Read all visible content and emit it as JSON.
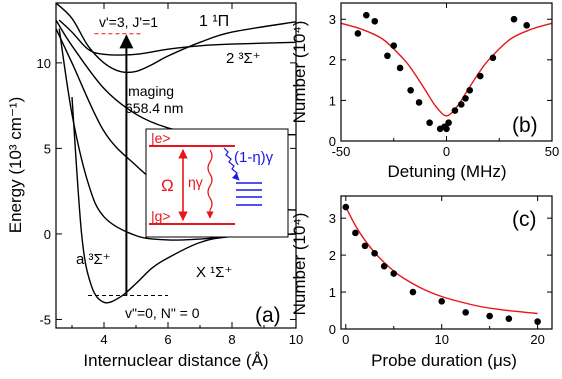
{
  "figure": {
    "panel_a": {
      "xlabel": "Internuclear distance (Å)",
      "ylabel": "Energy (10³ cm⁻¹)",
      "panel_label": "(a)",
      "xticks": [
        "4",
        "6",
        "8",
        "10"
      ],
      "yticks": [
        "-5",
        "0",
        "5",
        "10"
      ],
      "curve_labels": {
        "pi": "1 ¹Π",
        "sigma2": "2 ³Σ⁺",
        "a_state": "a ³Σ⁺",
        "x_state": "X ¹Σ⁺"
      },
      "annotations": {
        "upper_level": "v'=3, J'=1",
        "imaging": "imaging",
        "wavelength": "658.4 nm",
        "lower_level": "v\"=0, N\" = 0"
      },
      "inset": {
        "excited": "|e>",
        "ground": "|g>",
        "rabi": "Ω",
        "decay_to_g": "ηγ",
        "decay_other": "(1-η)γ"
      }
    },
    "panel_b": {
      "xlabel": "Detuning (MHz)",
      "ylabel": "Number (10⁴)",
      "panel_label": "(b)",
      "xticks": [
        "-50",
        "0",
        "50"
      ],
      "yticks": [
        "0",
        "1",
        "2",
        "3"
      ]
    },
    "panel_c": {
      "xlabel": "Probe duration (μs)",
      "ylabel": "Number (10⁴)",
      "panel_label": "(c)",
      "xticks": [
        "0",
        "10",
        "20"
      ],
      "yticks": [
        "0",
        "1",
        "2",
        "3"
      ]
    }
  },
  "colors": {
    "fit": "#e8141b",
    "inset_levels": "#e8141b",
    "decay_other": "#1a1ae6",
    "points": "#000000",
    "curves": "#000000"
  },
  "chart_data": [
    {
      "type": "line",
      "panel": "a",
      "xlabel": "Internuclear distance (Å)",
      "ylabel": "Energy (10³ cm⁻¹)",
      "xlim": [
        2.5,
        10
      ],
      "ylim": [
        -5.5,
        13.5
      ],
      "series": [
        {
          "name": "X ¹Σ⁺",
          "x": [
            3.0,
            3.3,
            3.6,
            4.0,
            4.5,
            5.0,
            5.5,
            6.0,
            7.0,
            8.0,
            10.0
          ],
          "y": [
            8.0,
            0.0,
            -3.0,
            -4.0,
            -3.7,
            -2.9,
            -2.0,
            -1.4,
            -0.5,
            -0.15,
            0.0
          ]
        },
        {
          "name": "a ³Σ⁺",
          "x": [
            2.6,
            3.0,
            3.5,
            4.0,
            5.0,
            6.0,
            7.0,
            8.0,
            10.0
          ],
          "y": [
            12.0,
            7.0,
            3.0,
            1.0,
            -0.1,
            -0.35,
            -0.3,
            -0.15,
            0.0
          ]
        },
        {
          "name": "2 ³Σ⁺",
          "x": [
            2.6,
            3.0,
            3.5,
            4.0,
            5.0,
            6.0,
            7.0,
            8.0,
            10.0
          ],
          "y": [
            12.5,
            11.8,
            10.8,
            10.5,
            10.5,
            10.8,
            11.0,
            11.1,
            11.2
          ]
        },
        {
          "name": "1 ¹Π",
          "x": [
            2.5,
            3.0,
            3.5,
            4.0,
            4.5,
            5.0,
            5.5,
            6.0,
            7.0,
            8.0,
            10.0
          ],
          "y": [
            13.5,
            12.6,
            11.0,
            10.0,
            9.5,
            9.5,
            9.9,
            10.4,
            11.2,
            11.8,
            12.4
          ]
        },
        {
          "name": "",
          "x": [
            2.5,
            3.0,
            4.0,
            5.0,
            6.0,
            7.0,
            8.0,
            10.0
          ],
          "y": [
            12.5,
            11.0,
            8.5,
            7.0,
            6.2,
            5.9,
            5.8,
            5.8
          ]
        },
        {
          "name": "",
          "x": [
            2.5,
            3.0,
            4.0,
            5.0,
            6.0,
            7.0,
            8.0,
            10.0
          ],
          "y": [
            12.0,
            10.0,
            6.0,
            4.0,
            2.5,
            1.8,
            1.5,
            1.4
          ]
        }
      ],
      "levels": [
        {
          "name": "v'=3, J'=1",
          "y": 11.7,
          "x": [
            3.7,
            5.2
          ]
        },
        {
          "name": "v\"=0, N\" = 0",
          "y": -3.6,
          "x": [
            3.5,
            6.0
          ]
        }
      ],
      "transition": {
        "label": "imaging 658.4 nm",
        "x": 4.7,
        "y_from": -3.6,
        "y_to": 11.7
      }
    },
    {
      "type": "scatter",
      "panel": "b",
      "xlabel": "Detuning (MHz)",
      "ylabel": "Number (10⁴)",
      "xlim": [
        -50,
        50
      ],
      "ylim": [
        0,
        3.4
      ],
      "series": [
        {
          "x": [
            -42,
            -38,
            -34,
            -28,
            -25,
            -22,
            -17,
            -13,
            -8,
            -3,
            -1,
            0,
            1,
            4,
            7,
            9,
            11,
            16,
            22,
            32,
            38
          ],
          "y": [
            2.65,
            3.1,
            2.95,
            2.1,
            2.35,
            1.8,
            1.25,
            0.95,
            0.45,
            0.3,
            0.35,
            0.3,
            0.45,
            0.75,
            0.9,
            1.05,
            1.25,
            1.6,
            2.05,
            3.0,
            2.85
          ]
        }
      ],
      "fit": {
        "x": [
          -50,
          -40,
          -30,
          -20,
          -15,
          -10,
          -5,
          0,
          5,
          10,
          15,
          20,
          30,
          40,
          50
        ],
        "y": [
          2.9,
          2.75,
          2.5,
          2.0,
          1.65,
          1.25,
          0.85,
          0.62,
          0.85,
          1.25,
          1.65,
          2.0,
          2.5,
          2.75,
          2.9
        ]
      }
    },
    {
      "type": "scatter",
      "panel": "c",
      "xlabel": "Probe duration (μs)",
      "ylabel": "Number (10⁴)",
      "xlim": [
        -0.5,
        21.5
      ],
      "ylim": [
        0,
        3.6
      ],
      "series": [
        {
          "x": [
            0,
            1,
            2,
            3,
            4,
            5,
            7,
            10,
            12.5,
            15,
            17,
            20
          ],
          "y": [
            3.3,
            2.6,
            2.25,
            2.05,
            1.7,
            1.5,
            1.0,
            0.75,
            0.45,
            0.35,
            0.28,
            0.2
          ]
        }
      ],
      "fit": {
        "x": [
          0,
          1,
          2,
          3,
          4,
          5,
          6,
          8,
          10,
          12,
          14,
          16,
          18,
          20
        ],
        "y": [
          3.3,
          2.8,
          2.4,
          2.07,
          1.8,
          1.57,
          1.38,
          1.09,
          0.88,
          0.73,
          0.61,
          0.53,
          0.47,
          0.42
        ]
      }
    }
  ]
}
